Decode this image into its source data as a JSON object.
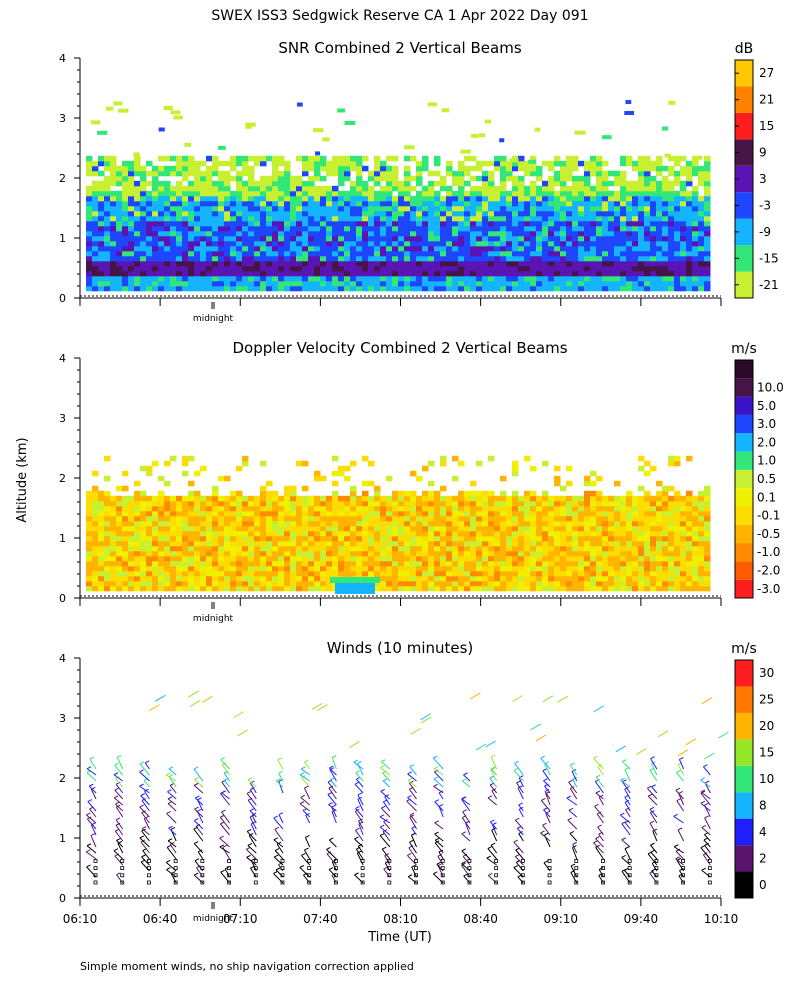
{
  "page_title": "SWEX ISS3 Sedgwick Reserve CA   1 Apr 2022 Day 091",
  "footer_note": "Simple moment winds, no ship navigation correction applied",
  "y_axis_label": "Altitude (km)",
  "x_axis_label": "Time (UT)",
  "midnight_label": "midnight",
  "time_ticks": [
    "06:10",
    "06:40",
    "07:10",
    "07:40",
    "08:10",
    "08:40",
    "09:10",
    "09:40",
    "10:10"
  ],
  "colors": {
    "snr_scale": [
      "#c8f032",
      "#32e678",
      "#14b4ff",
      "#1e46ff",
      "#5a14b4",
      "#461446",
      "#ff1e1e",
      "#ff8200",
      "#ffc800"
    ],
    "velocity_scale": [
      "#ff1e1e",
      "#ff5a00",
      "#ff8c00",
      "#ffb400",
      "#ffdc00",
      "#f0f000",
      "#c8f032",
      "#32e678",
      "#14b4ff",
      "#1e46ff",
      "#3c14c8",
      "#461446",
      "#2a0a28"
    ],
    "wind_scale": [
      "#000000",
      "#5a146e",
      "#1e1eff",
      "#14b4ff",
      "#32e678",
      "#96e628",
      "#ffb400",
      "#ff7800",
      "#ff1e1e"
    ]
  },
  "chart_data": [
    {
      "type": "heatmap",
      "title": "SNR Combined 2 Vertical Beams",
      "unit": "dB",
      "xlim": [
        "06:10",
        "10:10"
      ],
      "ylim": [
        0,
        4
      ],
      "y_ticks": [
        0,
        1,
        2,
        3,
        4
      ],
      "colorbar_ticks": [
        -21,
        -15,
        -9,
        -3,
        3,
        9,
        15,
        21,
        27
      ],
      "colorbar_labels": [
        "-21",
        "-15",
        "-9",
        "-3",
        "3",
        "9",
        "15",
        "21",
        "27"
      ],
      "layers": [
        {
          "altitude_km": [
            0.1,
            0.35
          ],
          "snr_db": -9
        },
        {
          "altitude_km": [
            0.35,
            0.5
          ],
          "snr_db": 6
        },
        {
          "altitude_km": [
            0.5,
            1.2
          ],
          "snr_db": -3
        },
        {
          "altitude_km": [
            1.2,
            1.6
          ],
          "snr_db": -9
        },
        {
          "altitude_km": [
            1.6,
            1.75
          ],
          "snr_db": -15
        },
        {
          "altitude_km": [
            1.75,
            2.3
          ],
          "snr_db": -21
        }
      ]
    },
    {
      "type": "heatmap",
      "title": "Doppler Velocity Combined 2 Vertical Beams",
      "unit": "m/s",
      "xlim": [
        "06:10",
        "10:10"
      ],
      "ylim": [
        0,
        4
      ],
      "y_ticks": [
        0,
        1,
        2,
        3,
        4
      ],
      "colorbar_labels": [
        "-3.0",
        "-2.0",
        "-1.0",
        "-0.5",
        "-0.1",
        "0.1",
        "0.5",
        "1.0",
        "2.0",
        "3.0",
        "5.0",
        "10.0"
      ],
      "layers": [
        {
          "altitude_km": [
            0.1,
            1.7
          ],
          "velocity_ms": -0.4
        },
        {
          "altitude_km": [
            1.7,
            2.3
          ],
          "velocity_ms": 0.2
        }
      ]
    },
    {
      "type": "wind_barbs",
      "title": "Winds (10 minutes)",
      "unit": "m/s",
      "xlim": [
        "06:10",
        "10:10"
      ],
      "ylim": [
        0,
        4
      ],
      "y_ticks": [
        0,
        1,
        2,
        3,
        4
      ],
      "colorbar_labels": [
        "0",
        "2",
        "4",
        "8",
        "10",
        "15",
        "20",
        "25",
        "30"
      ],
      "profile_interval_min": 10,
      "max_altitude_km": 2.2
    }
  ]
}
